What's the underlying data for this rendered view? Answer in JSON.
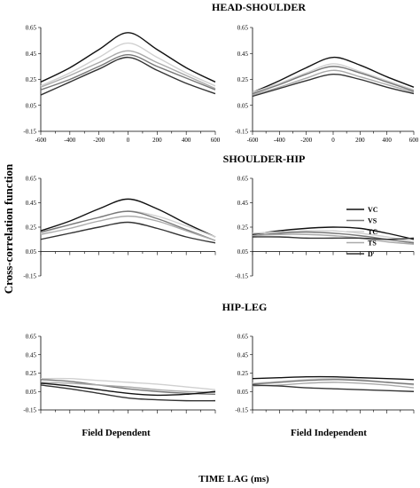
{
  "figure": {
    "y_title": "Cross-correlation function",
    "x_title": "TIME LAG (ms)",
    "col_labels": [
      "Field Dependent",
      "Field Independent"
    ],
    "row_titles": [
      "HEAD-SHOULDER",
      "SHOULDER-HIP",
      "HIP-LEG"
    ]
  },
  "legend": {
    "position": "right of middle-right panel",
    "items": [
      {
        "label": "VC",
        "color": "#111111"
      },
      {
        "label": "VS",
        "color": "#777777"
      },
      {
        "label": "TC",
        "color": "#d0d0d0"
      },
      {
        "label": "TS",
        "color": "#aaaaaa"
      },
      {
        "label": "D",
        "color": "#333333"
      }
    ]
  },
  "chart_data": [
    {
      "type": "line",
      "row": "HEAD-SHOULDER",
      "column": "Field Dependent",
      "x": [
        -600,
        -400,
        -200,
        0,
        200,
        400,
        600
      ],
      "xlim": [
        -600,
        600
      ],
      "ylim": [
        -0.15,
        0.65
      ],
      "xticks": [
        "-600",
        "-400",
        "-200",
        "0",
        "200",
        "400",
        "600"
      ],
      "yticks": [
        "0.65",
        "0.45",
        "0.25",
        "0.05",
        "-0.15"
      ],
      "series": [
        {
          "name": "VC",
          "values": [
            0.23,
            0.34,
            0.48,
            0.61,
            0.48,
            0.34,
            0.23
          ]
        },
        {
          "name": "TC",
          "values": [
            0.2,
            0.3,
            0.42,
            0.53,
            0.42,
            0.3,
            0.2
          ]
        },
        {
          "name": "TS",
          "values": [
            0.19,
            0.28,
            0.38,
            0.47,
            0.38,
            0.28,
            0.18
          ]
        },
        {
          "name": "VS",
          "values": [
            0.17,
            0.25,
            0.35,
            0.44,
            0.35,
            0.26,
            0.17
          ]
        },
        {
          "name": "D",
          "values": [
            0.13,
            0.23,
            0.33,
            0.42,
            0.32,
            0.22,
            0.14
          ]
        }
      ]
    },
    {
      "type": "line",
      "row": "HEAD-SHOULDER",
      "column": "Field Independent",
      "x": [
        -600,
        -400,
        -200,
        0,
        200,
        400,
        600
      ],
      "xlim": [
        -600,
        600
      ],
      "ylim": [
        -0.15,
        0.65
      ],
      "xticks": [
        "-600",
        "-400",
        "-200",
        "0",
        "200",
        "400",
        "600"
      ],
      "yticks": [
        "0.65",
        "0.45",
        "0.25",
        "0.05",
        "-0.15"
      ],
      "series": [
        {
          "name": "VC",
          "values": [
            0.15,
            0.24,
            0.34,
            0.42,
            0.36,
            0.27,
            0.19
          ]
        },
        {
          "name": "TC",
          "values": [
            0.15,
            0.22,
            0.3,
            0.37,
            0.31,
            0.24,
            0.17
          ]
        },
        {
          "name": "VS",
          "values": [
            0.14,
            0.21,
            0.29,
            0.35,
            0.3,
            0.23,
            0.16
          ]
        },
        {
          "name": "TS",
          "values": [
            0.13,
            0.19,
            0.26,
            0.32,
            0.27,
            0.21,
            0.15
          ]
        },
        {
          "name": "D",
          "values": [
            0.12,
            0.18,
            0.24,
            0.29,
            0.25,
            0.19,
            0.14
          ]
        }
      ]
    },
    {
      "type": "line",
      "row": "SHOULDER-HIP",
      "column": "Field Dependent",
      "x": [
        -600,
        -400,
        -200,
        0,
        200,
        400,
        600
      ],
      "xlim": [
        -600,
        600
      ],
      "ylim": [
        -0.15,
        0.65
      ],
      "yticks": [
        "0.65",
        "0.45",
        "0.25",
        "0.05",
        "-0.15"
      ],
      "series": [
        {
          "name": "VC",
          "values": [
            0.22,
            0.3,
            0.4,
            0.48,
            0.4,
            0.28,
            0.17
          ]
        },
        {
          "name": "TC",
          "values": [
            0.2,
            0.27,
            0.33,
            0.38,
            0.34,
            0.26,
            0.17
          ]
        },
        {
          "name": "VS",
          "values": [
            0.21,
            0.27,
            0.33,
            0.38,
            0.32,
            0.23,
            0.14
          ]
        },
        {
          "name": "TS",
          "values": [
            0.19,
            0.24,
            0.3,
            0.34,
            0.3,
            0.22,
            0.14
          ]
        },
        {
          "name": "D",
          "values": [
            0.15,
            0.2,
            0.25,
            0.29,
            0.24,
            0.17,
            0.12
          ]
        }
      ]
    },
    {
      "type": "line",
      "row": "SHOULDER-HIP",
      "column": "Field Independent",
      "x": [
        -600,
        -400,
        -200,
        0,
        200,
        400,
        600
      ],
      "xlim": [
        -600,
        600
      ],
      "ylim": [
        -0.15,
        0.65
      ],
      "yticks": [
        "0.65",
        "0.45",
        "0.25",
        "0.05",
        "-0.15"
      ],
      "series": [
        {
          "name": "VC",
          "values": [
            0.19,
            0.22,
            0.24,
            0.25,
            0.24,
            0.2,
            0.15
          ]
        },
        {
          "name": "TC",
          "values": [
            0.2,
            0.21,
            0.22,
            0.22,
            0.2,
            0.17,
            0.13
          ]
        },
        {
          "name": "VS",
          "values": [
            0.18,
            0.2,
            0.21,
            0.2,
            0.18,
            0.15,
            0.12
          ]
        },
        {
          "name": "TS",
          "values": [
            0.18,
            0.19,
            0.19,
            0.18,
            0.16,
            0.13,
            0.11
          ]
        },
        {
          "name": "D",
          "values": [
            0.17,
            0.17,
            0.16,
            0.16,
            0.16,
            0.15,
            0.16
          ]
        }
      ]
    },
    {
      "type": "line",
      "row": "HIP-LEG",
      "column": "Field Dependent",
      "x": [
        -600,
        -400,
        -200,
        0,
        200,
        400,
        600
      ],
      "xlim": [
        -600,
        600
      ],
      "ylim": [
        -0.15,
        0.65
      ],
      "yticks": [
        "0.65",
        "0.45",
        "0.25",
        "0.05",
        "-0.15"
      ],
      "series": [
        {
          "name": "TC",
          "values": [
            0.19,
            0.19,
            0.17,
            0.15,
            0.13,
            0.1,
            0.07
          ]
        },
        {
          "name": "VS",
          "values": [
            0.18,
            0.16,
            0.12,
            0.08,
            0.05,
            0.03,
            0.02
          ]
        },
        {
          "name": "TS",
          "values": [
            0.15,
            0.14,
            0.12,
            0.1,
            0.07,
            0.05,
            0.04
          ]
        },
        {
          "name": "VC",
          "values": [
            0.14,
            0.11,
            0.07,
            0.03,
            0.01,
            0.02,
            0.05
          ]
        },
        {
          "name": "D",
          "values": [
            0.12,
            0.08,
            0.03,
            -0.02,
            -0.04,
            -0.05,
            -0.05
          ]
        }
      ]
    },
    {
      "type": "line",
      "row": "HIP-LEG",
      "column": "Field Independent",
      "x": [
        -600,
        -400,
        -200,
        0,
        200,
        400,
        600
      ],
      "xlim": [
        -600,
        600
      ],
      "ylim": [
        -0.15,
        0.65
      ],
      "yticks": [
        "0.65",
        "0.45",
        "0.25",
        "0.05",
        "-0.15"
      ],
      "series": [
        {
          "name": "VC",
          "values": [
            0.19,
            0.2,
            0.21,
            0.21,
            0.2,
            0.19,
            0.18
          ]
        },
        {
          "name": "TC",
          "values": [
            0.14,
            0.16,
            0.18,
            0.19,
            0.18,
            0.15,
            0.12
          ]
        },
        {
          "name": "VS",
          "values": [
            0.13,
            0.15,
            0.17,
            0.18,
            0.17,
            0.15,
            0.13
          ]
        },
        {
          "name": "TS",
          "values": [
            0.11,
            0.12,
            0.14,
            0.15,
            0.14,
            0.12,
            0.09
          ]
        },
        {
          "name": "D",
          "values": [
            0.12,
            0.11,
            0.09,
            0.08,
            0.07,
            0.06,
            0.05
          ]
        }
      ]
    }
  ]
}
